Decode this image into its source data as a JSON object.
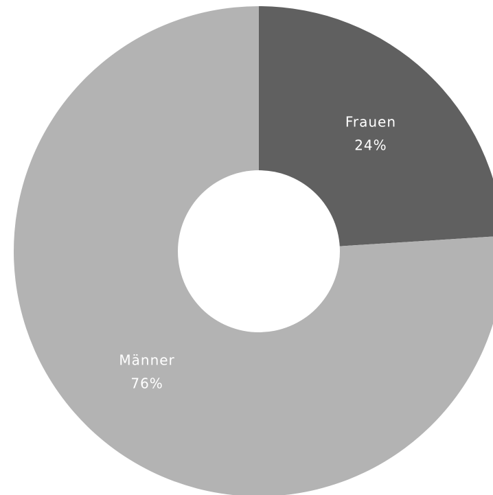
{
  "chart_data": {
    "type": "pie",
    "donut": true,
    "title": "",
    "slices": [
      {
        "label": "Frauen",
        "value": 24,
        "display": "24%",
        "color": "#606060"
      },
      {
        "label": "Männer",
        "value": 76,
        "display": "76%",
        "color": "#b3b3b3"
      }
    ],
    "start_angle": "12 o'clock",
    "direction": "clockwise",
    "legend": "none"
  }
}
